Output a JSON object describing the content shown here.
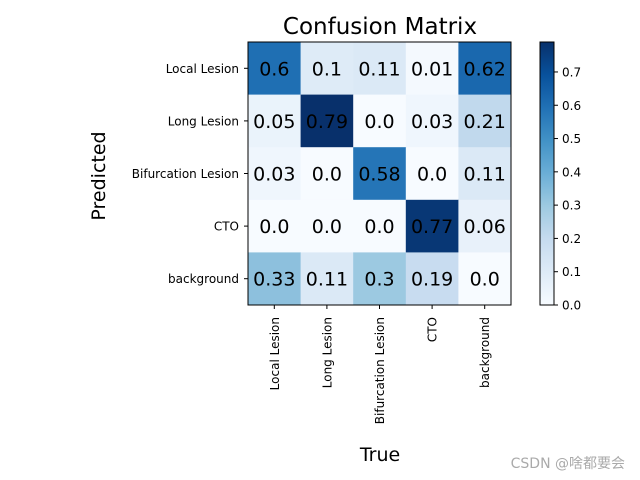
{
  "chart_data": {
    "type": "heatmap",
    "title": "Confusion Matrix",
    "xlabel": "True",
    "ylabel": "Predicted",
    "x_categories": [
      "Local Lesion",
      "Long Lesion",
      "Bifurcation Lesion",
      "CTO",
      "background"
    ],
    "y_categories": [
      "Local Lesion",
      "Long Lesion",
      "Bifurcation Lesion",
      "CTO",
      "background"
    ],
    "values": [
      [
        0.6,
        0.1,
        0.11,
        0.01,
        0.62
      ],
      [
        0.05,
        0.79,
        0.0,
        0.03,
        0.21
      ],
      [
        0.03,
        0.0,
        0.58,
        0.0,
        0.11
      ],
      [
        0.0,
        0.0,
        0.0,
        0.77,
        0.06
      ],
      [
        0.33,
        0.11,
        0.3,
        0.19,
        0.0
      ]
    ],
    "cell_labels": [
      [
        "0.6",
        "0.1",
        "0.11",
        "0.01",
        "0.62"
      ],
      [
        "0.05",
        "0.79",
        "0.0",
        "0.03",
        "0.21"
      ],
      [
        "0.03",
        "0.0",
        "0.58",
        "0.0",
        "0.11"
      ],
      [
        "0.0",
        "0.0",
        "0.0",
        "0.77",
        "0.06"
      ],
      [
        "0.33",
        "0.11",
        "0.3",
        "0.19",
        "0.0"
      ]
    ],
    "colormap": "Blues",
    "vmin": 0.0,
    "vmax": 0.79,
    "colorbar_ticks": [
      "0.0",
      "0.1",
      "0.2",
      "0.3",
      "0.4",
      "0.5",
      "0.6",
      "0.7"
    ],
    "grid": false
  },
  "watermark": "CSDN @啥都要会"
}
